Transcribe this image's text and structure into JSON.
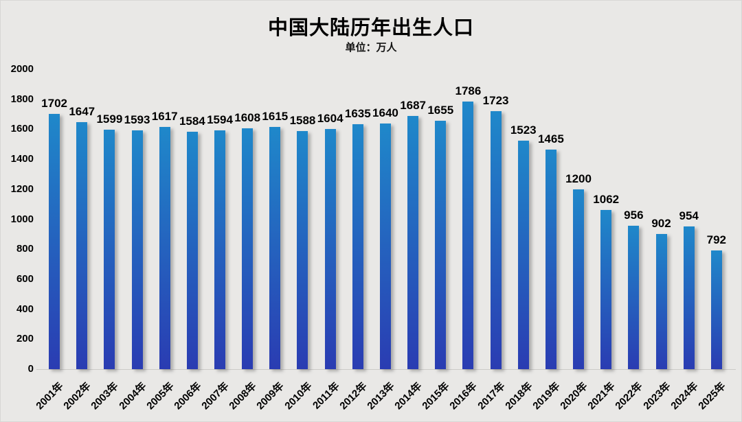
{
  "page": {
    "background_color": "#e9e8e6"
  },
  "chart_data": {
    "type": "bar",
    "title": "中国大陆历年出生人口",
    "unit_label": "单位：万人",
    "categories": [
      "2001年",
      "2002年",
      "2003年",
      "2004年",
      "2005年",
      "2006年",
      "2007年",
      "2008年",
      "2009年",
      "2010年",
      "2011年",
      "2012年",
      "2013年",
      "2014年",
      "2015年",
      "2016年",
      "2017年",
      "2018年",
      "2019年",
      "2020年",
      "2021年",
      "2022年",
      "2023年",
      "2024年",
      "2025年"
    ],
    "values": [
      1702,
      1647,
      1599,
      1593,
      1617,
      1584,
      1594,
      1608,
      1615,
      1588,
      1604,
      1635,
      1640,
      1687,
      1655,
      1786,
      1723,
      1523,
      1465,
      1200,
      1062,
      956,
      902,
      954,
      792
    ],
    "xlabel": "",
    "ylabel": "",
    "ylim": [
      0,
      2000
    ],
    "yticks": [
      0,
      200,
      400,
      600,
      800,
      1000,
      1200,
      1400,
      1600,
      1800,
      2000
    ],
    "grid": false,
    "legend_position": "none",
    "data_labels": true,
    "bar_gradient_top": "#1f88ca",
    "bar_gradient_bottom": "#2a3cb2",
    "value_label_color": "#000000",
    "axis_label_color": "#000000"
  }
}
